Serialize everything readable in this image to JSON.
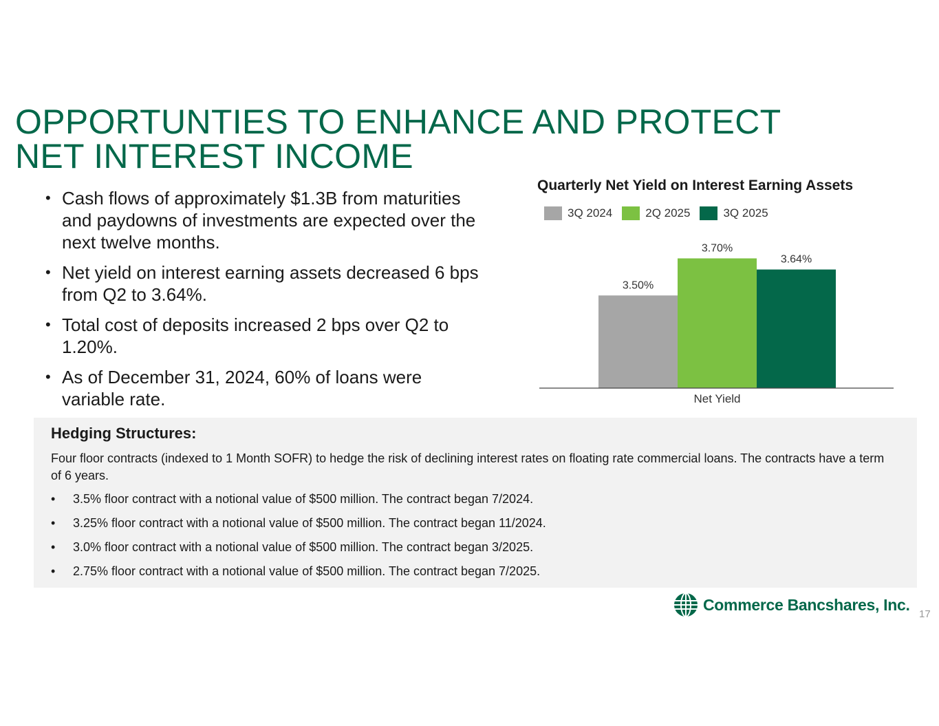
{
  "title": {
    "line1": "OPPORTUNTIES TO ENHANCE AND PROTECT",
    "line2": "NET INTEREST INCOME"
  },
  "bullets": [
    "Cash flows of approximately $1.3B from maturities and paydowns of investments are expected over the next twelve months.",
    "Net yield on interest earning assets decreased 6 bps from Q2 to 3.64%.",
    "Total cost of deposits increased 2 bps over Q2 to 1.20%.",
    "As of December 31, 2024, 60% of loans were variable rate."
  ],
  "chart_data": {
    "type": "bar",
    "title": "Quarterly Net Yield on Interest Earning Assets",
    "categories": [
      "Net Yield"
    ],
    "series": [
      {
        "name": "3Q 2024",
        "values": [
          3.5
        ],
        "label": "3.50%",
        "color": "#a6a6a6"
      },
      {
        "name": "2Q 2025",
        "values": [
          3.7
        ],
        "label": "3.70%",
        "color": "#7cc142"
      },
      {
        "name": "3Q 2025",
        "values": [
          3.64
        ],
        "label": "3.64%",
        "color": "#04684a"
      }
    ],
    "legend": "top-left",
    "grid": false
  },
  "hedging": {
    "title": "Hedging Structures:",
    "intro": "Four floor contracts (indexed to 1 Month SOFR) to hedge the risk of declining interest rates on floating rate commercial loans. The contracts have a term of 6 years.",
    "items": [
      "3.5% floor contract with a notional value of $500 million. The contract began 7/2024.",
      "3.25% floor contract with a notional value of $500 million. The contract began 11/2024.",
      "3.0% floor contract with a notional value of $500 million. The contract began 3/2025.",
      "2.75% floor contract with a notional value of $500 million. The contract began 7/2025."
    ]
  },
  "logo": {
    "text": "Commerce Bancshares, Inc.",
    "icon": "globe-icon"
  },
  "page_number": "17"
}
